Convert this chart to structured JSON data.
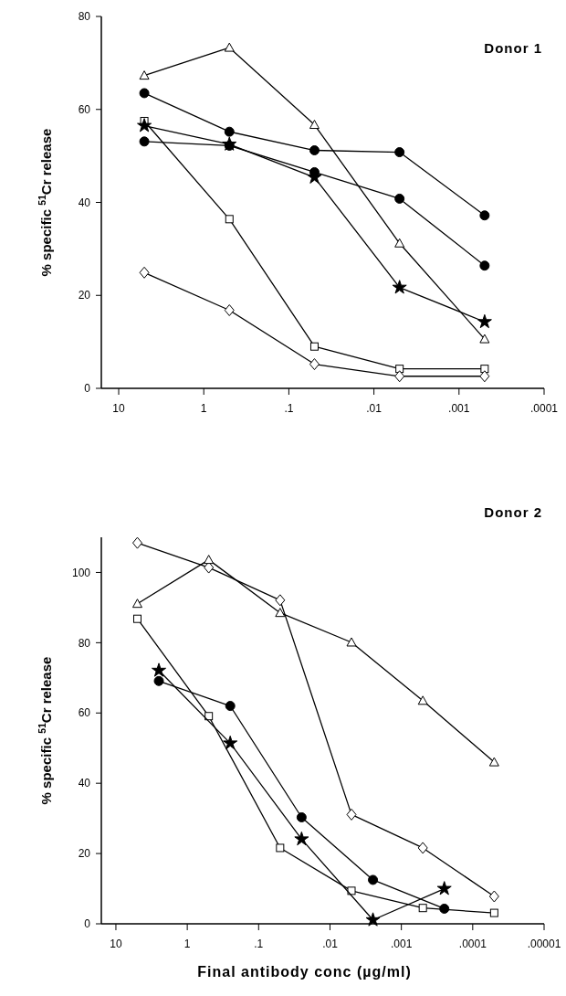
{
  "chart_data": [
    {
      "type": "line",
      "title": "Donor 1",
      "ylabel": "% specific $^{51}$Cr release",
      "log": "x",
      "xlim": [
        16,
        0.0001
      ],
      "xticks": [
        {
          "value": 10,
          "label": "10"
        },
        {
          "value": 1,
          "label": "1"
        },
        {
          "value": 0.1,
          "label": ".1"
        },
        {
          "value": 0.01,
          "label": ".01"
        },
        {
          "value": 0.001,
          "label": ".001"
        },
        {
          "value": 0.0001,
          "label": ".0001"
        }
      ],
      "ylim": [
        0,
        80
      ],
      "yticks": [
        0,
        20,
        40,
        60,
        80
      ],
      "grid": false,
      "line_style": "solid",
      "x": [
        5,
        0.5,
        0.05,
        0.005,
        0.0005
      ],
      "series": [
        {
          "color": "#000000",
          "marker": "triangle",
          "values": [
            67.3,
            73.3,
            56.7,
            31.2,
            10.6
          ]
        },
        {
          "color": "#000000",
          "marker": "circle",
          "values": [
            63.5,
            55.2,
            51.2,
            50.8,
            37.2
          ]
        },
        {
          "color": "#000000",
          "marker": "square",
          "values": [
            57.5,
            36.4,
            9.0,
            4.2,
            4.2
          ]
        },
        {
          "color": "#000000",
          "marker": "star",
          "values": [
            56.5,
            52.5,
            45.4,
            21.7,
            14.3
          ]
        },
        {
          "color": "#000000",
          "marker": "circle",
          "values": [
            53.1,
            52.2,
            46.5,
            40.8,
            26.4
          ]
        },
        {
          "color": "#000000",
          "marker": "diamond",
          "values": [
            24.9,
            16.8,
            5.2,
            2.6,
            2.6
          ]
        }
      ]
    },
    {
      "type": "line",
      "title": "Donor 2",
      "ylabel": "% specific $^{51}$Cr release",
      "xlabel": "Final antibody conc (µg/ml)",
      "log": "x",
      "xlim": [
        16,
        1e-05
      ],
      "xticks": [
        {
          "value": 10,
          "label": "10"
        },
        {
          "value": 1,
          "label": "1"
        },
        {
          "value": 0.1,
          "label": ".1"
        },
        {
          "value": 0.01,
          "label": ".01"
        },
        {
          "value": 0.001,
          "label": ".001"
        },
        {
          "value": 0.0001,
          "label": ".0001"
        },
        {
          "value": 1e-05,
          "label": ".00001"
        }
      ],
      "ylim": [
        0,
        110
      ],
      "yticks": [
        0,
        20,
        40,
        60,
        80,
        100
      ],
      "grid": false,
      "line_style": "solid",
      "x": [
        5,
        0.5,
        0.05,
        0.005,
        0.0005,
        5e-05
      ],
      "series": [
        {
          "color": "#000000",
          "marker": "diamond",
          "values": [
            108.4,
            101.4,
            92.1,
            31.1,
            21.6,
            7.8
          ]
        },
        {
          "color": "#000000",
          "marker": "triangle",
          "values": [
            91.1,
            103.6,
            88.5,
            80.1,
            63.5,
            46.0
          ]
        },
        {
          "color": "#000000",
          "marker": "square",
          "values": [
            86.8,
            59.1,
            21.6,
            9.4,
            4.5,
            3.1
          ]
        },
        {
          "color": "#000000",
          "marker": "star",
          "x": [
            2.5,
            0.25,
            0.025,
            0.0025,
            0.00025
          ],
          "values": [
            72.1,
            51.4,
            24.1,
            1.1,
            10.0
          ]
        },
        {
          "color": "#000000",
          "marker": "circle",
          "x": [
            2.5,
            0.25,
            0.025,
            0.0025,
            0.00025
          ],
          "values": [
            69.1,
            62.0,
            30.3,
            12.5,
            4.3
          ]
        }
      ]
    }
  ]
}
